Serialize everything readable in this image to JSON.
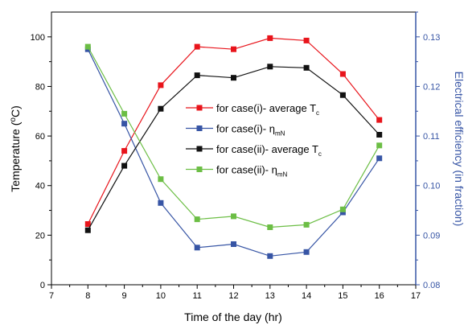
{
  "chart_data": {
    "type": "line",
    "xlabel": "Time of the day (hr)",
    "ylabel_left": "Temperature (°C)",
    "ylabel_right": "Electrical efficiency (in fraction)",
    "xlim": [
      7,
      17
    ],
    "ylim_left": [
      0,
      110
    ],
    "ylim_right": [
      0.08,
      0.135
    ],
    "x_ticks": [
      "7",
      "8",
      "9",
      "10",
      "11",
      "12",
      "13",
      "14",
      "15",
      "16",
      "17"
    ],
    "y_left_ticks": [
      "0",
      "20",
      "40",
      "60",
      "80",
      "100"
    ],
    "y_right_ticks": [
      "0.08",
      "0.09",
      "0.10",
      "0.11",
      "0.12",
      "0.13"
    ],
    "legend_position": "center",
    "series": [
      {
        "name": "for case(i)- average T",
        "name_subscript": "c",
        "axis": "left",
        "color": "#e8141b",
        "x": [
          8,
          9,
          10,
          11,
          12,
          13,
          14,
          15,
          16
        ],
        "y": [
          24.5,
          54,
          80.5,
          96,
          95,
          99.5,
          98.5,
          85,
          66.5
        ]
      },
      {
        "name": "for case(i)- η",
        "name_subscript": "mN",
        "axis": "right",
        "color": "#3755a5",
        "x": [
          8,
          9,
          10,
          11,
          12,
          13,
          14,
          15,
          16
        ],
        "y": [
          0.1275,
          0.1125,
          0.0965,
          0.0875,
          0.0882,
          0.0858,
          0.0866,
          0.0946,
          0.1055
        ]
      },
      {
        "name": "for case(ii)- average T",
        "name_subscript": "c",
        "axis": "left",
        "color": "#111111",
        "x": [
          8,
          9,
          10,
          11,
          12,
          13,
          14,
          15,
          16
        ],
        "y": [
          22,
          48,
          71,
          84.5,
          83.5,
          88,
          87.5,
          76.5,
          60.5
        ]
      },
      {
        "name": "for case(ii)- η",
        "name_subscript": "mN",
        "axis": "right",
        "color": "#6cbe45",
        "x": [
          8,
          9,
          10,
          11,
          12,
          13,
          14,
          15,
          16
        ],
        "y": [
          0.128,
          0.1145,
          0.1013,
          0.0932,
          0.0938,
          0.0916,
          0.0921,
          0.0952,
          0.1081
        ]
      }
    ]
  }
}
